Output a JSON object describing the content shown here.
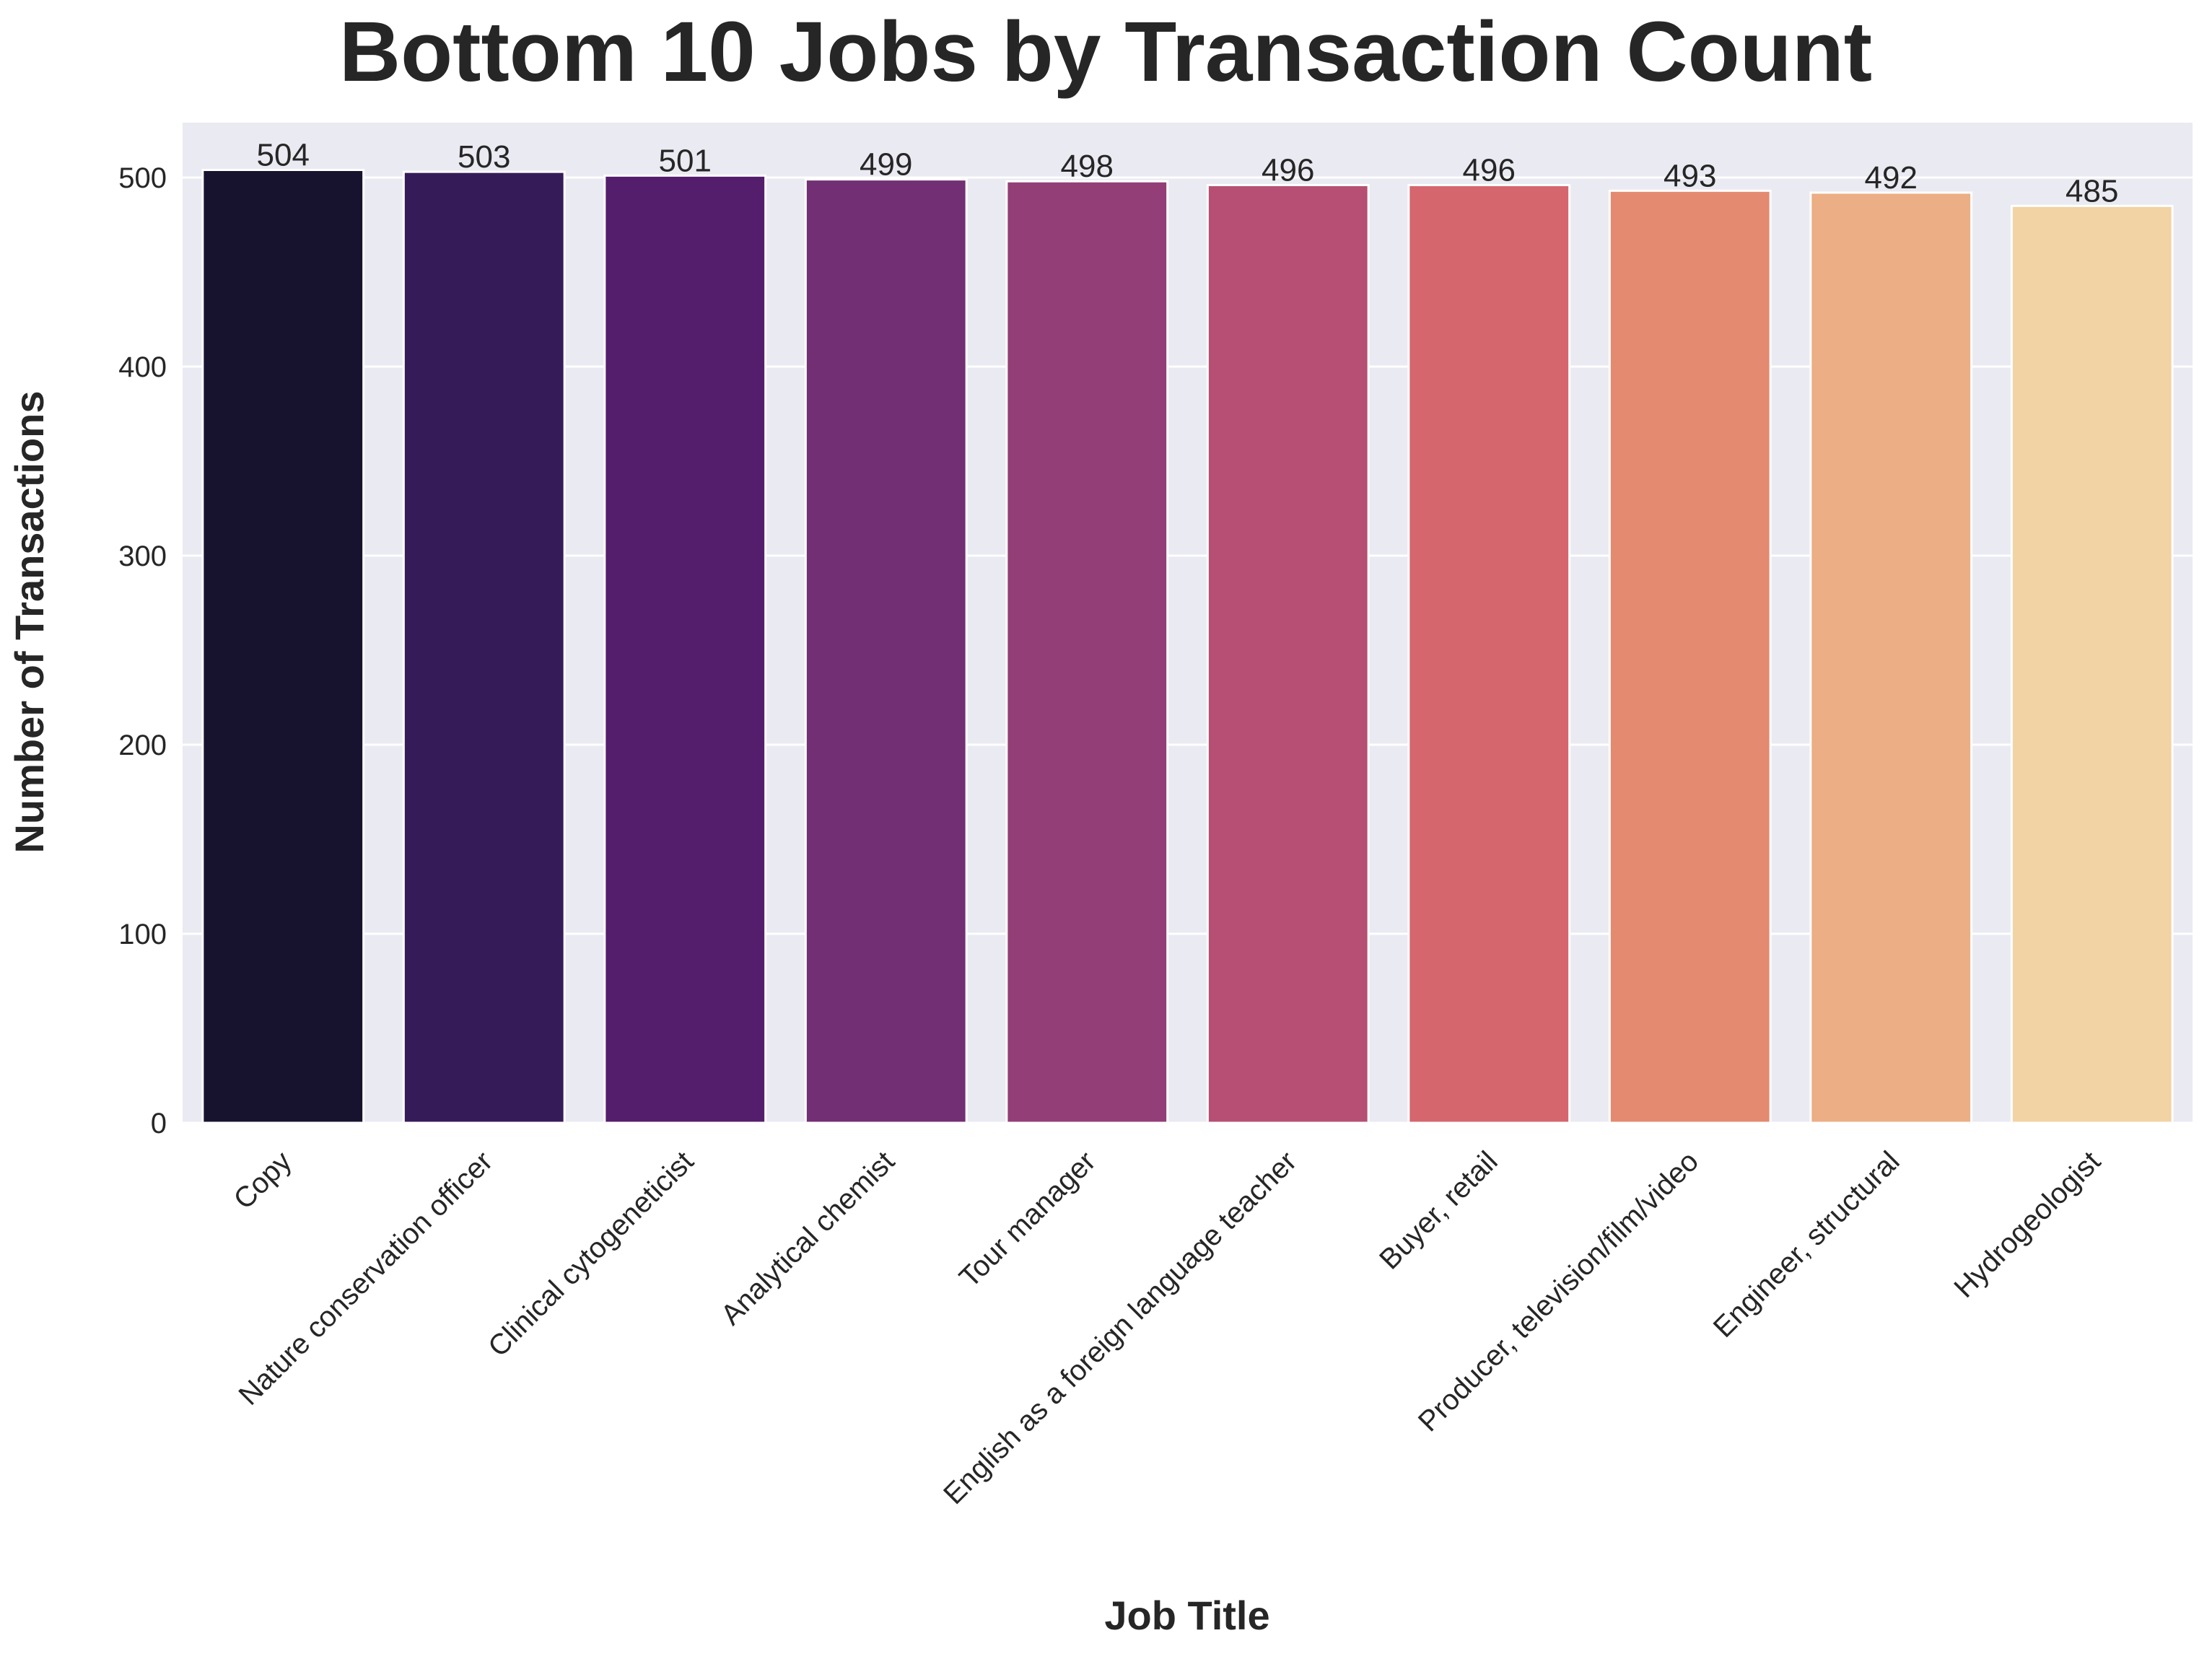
{
  "chart_data": {
    "type": "bar",
    "title": "Bottom 10 Jobs by Transaction Count",
    "xlabel": "Job Title",
    "ylabel": "Number of Transactions",
    "categories": [
      "Copy",
      "Nature conservation officer",
      "Clinical cytogeneticist",
      "Analytical chemist",
      "Tour manager",
      "English as a foreign language teacher",
      "Buyer, retail",
      "Producer, television/film/video",
      "Engineer, structural",
      "Hydrogeologist"
    ],
    "values": [
      504,
      503,
      501,
      499,
      498,
      496,
      496,
      493,
      492,
      485
    ],
    "data_labels": [
      "504",
      "503",
      "501",
      "499",
      "498",
      "496",
      "496",
      "493",
      "492",
      "485"
    ],
    "yticks": [
      0,
      100,
      200,
      300,
      400,
      500
    ],
    "ytick_labels": [
      "0",
      "100",
      "200",
      "300",
      "400",
      "500"
    ],
    "ylim": [
      0,
      529
    ],
    "grid": true,
    "colors": {
      "plot_background": "#eaeaf2",
      "grid": "#ffffff",
      "text": "#262626",
      "bars": [
        "#17132f",
        "#361b59",
        "#541e6c",
        "#732f73",
        "#933e76",
        "#b64f73",
        "#d5666e",
        "#e48a70",
        "#ecae84",
        "#f1d3a4"
      ]
    }
  }
}
